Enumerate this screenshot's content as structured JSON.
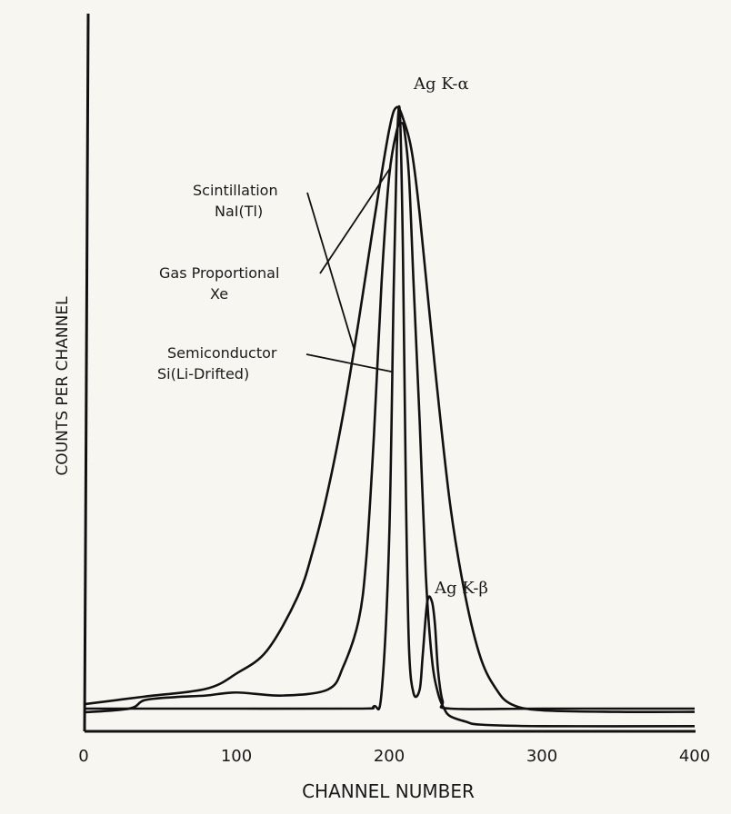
{
  "chart_data": {
    "type": "line",
    "xlabel": "CHANNEL NUMBER",
    "ylabel": "COUNTS PER CHANNEL",
    "xlim": [
      0,
      400
    ],
    "x_ticks": [
      "0",
      "100",
      "200",
      "300",
      "400"
    ],
    "grid": false,
    "series": [
      {
        "name": "Scintillation NaI(Tl)",
        "label_lines": [
          "Scintillation",
          "NaI(Tl)"
        ],
        "x": [
          0,
          40,
          80,
          100,
          120,
          140,
          150,
          160,
          170,
          180,
          190,
          200,
          205,
          210,
          215,
          220,
          230,
          240,
          250,
          260,
          270,
          280,
          300,
          350,
          400
        ],
        "y": [
          2,
          3,
          4,
          6,
          9,
          16,
          22,
          30,
          40,
          52,
          65,
          77,
          80,
          78,
          74,
          66,
          46,
          28,
          16,
          8,
          4,
          2,
          1.2,
          1,
          1
        ]
      },
      {
        "name": "Gas Proportional Xe",
        "label_lines": [
          "Gas Proportional",
          "Xe"
        ],
        "x": [
          0,
          30,
          40,
          60,
          80,
          100,
          130,
          160,
          170,
          180,
          185,
          190,
          195,
          200,
          205,
          208,
          210,
          213,
          216,
          220,
          224,
          228,
          232,
          236,
          240,
          250,
          260,
          300,
          400
        ],
        "y": [
          2,
          2.5,
          3.6,
          4,
          4.2,
          4.6,
          4.2,
          5,
          8,
          14,
          22,
          38,
          58,
          72,
          78,
          79,
          78,
          72,
          58,
          40,
          20,
          9,
          4.5,
          2.5,
          1.5,
          0.8,
          0.4,
          0.2,
          0.2
        ]
      },
      {
        "name": "Semiconductor Si(Li-Drifted)",
        "label_lines": [
          "Semiconductor",
          "Si(Li-Drifted)"
        ],
        "x": [
          0,
          100,
          180,
          190,
          195,
          200,
          203,
          205,
          207,
          209,
          211,
          213,
          216,
          220,
          222,
          225,
          228,
          230,
          232,
          235,
          240,
          300,
          400
        ],
        "y": [
          0,
          0,
          0,
          0.3,
          2,
          22,
          55,
          73,
          78,
          60,
          28,
          8,
          2,
          2.5,
          7,
          14,
          14,
          11,
          5,
          1,
          0,
          0,
          0
        ]
      }
    ],
    "annotations": [
      {
        "text": "Ag K-α",
        "x": 206,
        "y": 80
      },
      {
        "text": "Ag K-β",
        "x": 228,
        "y": 15
      }
    ],
    "line_color": "#111111"
  }
}
